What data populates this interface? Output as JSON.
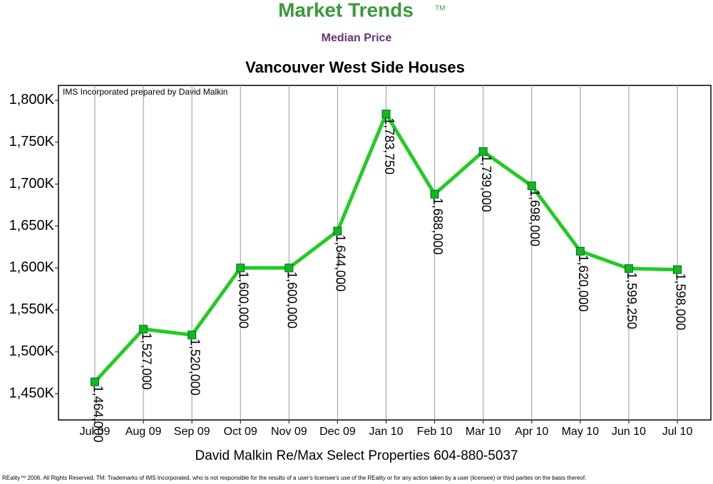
{
  "header": {
    "brand": "Market Trends",
    "trademark": "TM",
    "subtitle": "Median Price"
  },
  "chart_data": {
    "type": "line",
    "title": "Vancouver West Side Houses",
    "note": "IMS Incorporated prepared by David Malkin",
    "categories": [
      "Jul 09",
      "Aug 09",
      "Sep 09",
      "Oct 09",
      "Nov 09",
      "Dec 09",
      "Jan 10",
      "Feb 10",
      "Mar 10",
      "Apr 10",
      "May 10",
      "Jun 10",
      "Jul 10"
    ],
    "values": [
      1464000,
      1527000,
      1520000,
      1600000,
      1600000,
      1644000,
      1783750,
      1688000,
      1739000,
      1698000,
      1620000,
      1599250,
      1598000
    ],
    "value_labels": [
      "1,464,000",
      "1,527,000",
      "1,520,000",
      "1,600,000",
      "1,600,000",
      "1,644,000",
      "1,783,750",
      "1,688,000",
      "1,739,000",
      "1,698,000",
      "1,620,000",
      "1,599,250",
      "1,598,000"
    ],
    "color": "#22cc22",
    "marker_color": "#11bb11",
    "ylim": [
      1418600,
      1817800
    ],
    "yticks": [
      {
        "value": 1450000,
        "label": "1,450K"
      },
      {
        "value": 1500000,
        "label": "1,500K"
      },
      {
        "value": 1550000,
        "label": "1,550K"
      },
      {
        "value": 1600000,
        "label": "1,600K"
      },
      {
        "value": 1650000,
        "label": "1,650K"
      },
      {
        "value": 1700000,
        "label": "1,700K"
      },
      {
        "value": 1750000,
        "label": "1,750K"
      },
      {
        "value": 1800000,
        "label": "1,800K"
      }
    ],
    "vertical_grid": true
  },
  "footer": {
    "contact": "David Malkin Re/Max Select Properties 604-880-5037",
    "disclaimer": "REality™ 2006. All Rights Reserved. TM: Trademarks of IMS Incorporated, who is not responsible for the results of a user's licensee's use of the REality  or for any action taken by a user (licensee) or third parties on the basis thereof."
  }
}
